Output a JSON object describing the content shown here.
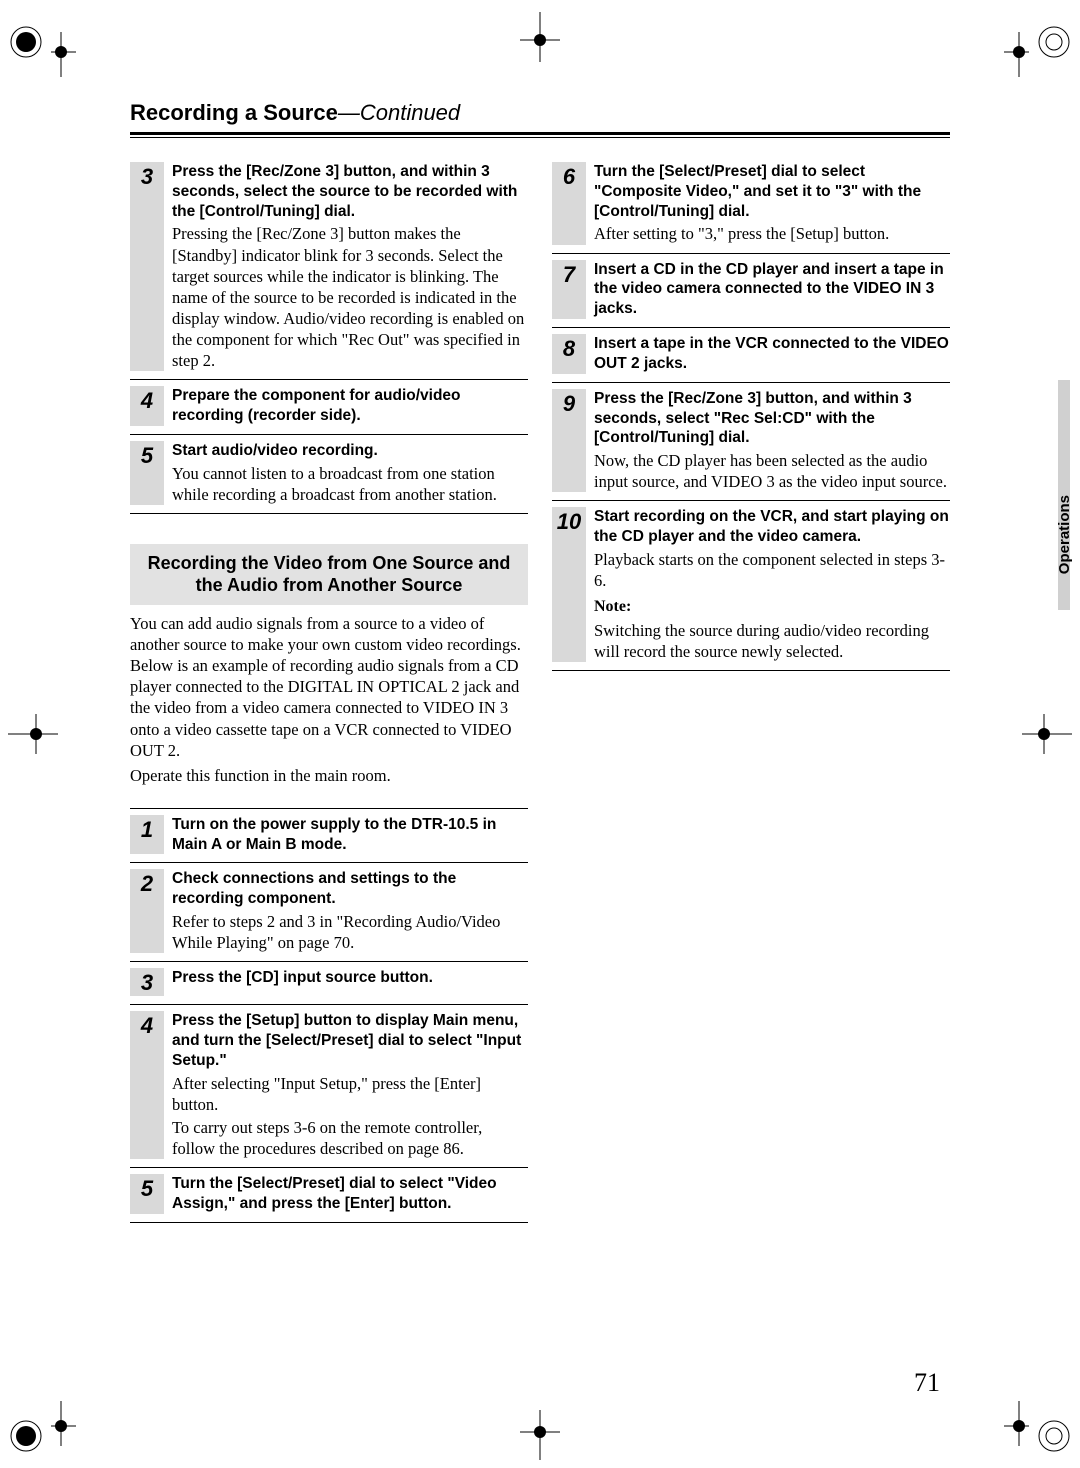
{
  "header": {
    "title": "Recording a Source",
    "continued": "—Continued"
  },
  "sideTab": "Operations",
  "pageNumber": "71",
  "leftTop": {
    "steps": [
      {
        "n": "3",
        "bold": "Press the [Rec/Zone 3] button, and within 3 seconds, select the source to be recorded with the [Control/Tuning] dial.",
        "plain": "Pressing the [Rec/Zone 3] button makes the [Standby] indicator blink for 3 seconds. Select the target sources while the indicator is blinking. The name of the source to be recorded is indicated in the display window. Audio/video recording is enabled on the component for which \"Rec Out\" was specified in step 2."
      },
      {
        "n": "4",
        "bold": "Prepare the component for audio/video recording (recorder side).",
        "plain": ""
      },
      {
        "n": "5",
        "bold": "Start audio/video recording.",
        "plain": "You cannot listen to a broadcast from one station while recording a broadcast from another station."
      }
    ]
  },
  "section2": {
    "heading": "Recording the Video from One Source and the Audio from Another Source",
    "para1": "You can add audio signals from a source to a video of another source to make your own custom video recordings. Below is an example of recording audio signals from a CD player connected to the DIGITAL IN OPTICAL 2 jack and the video from a video camera connected to VIDEO IN 3 onto a video cassette tape on a VCR connected to VIDEO OUT 2.",
    "para2": "Operate this function in the main room.",
    "steps": [
      {
        "n": "1",
        "bold": "Turn on the power supply to the DTR-10.5 in Main A or Main B mode.",
        "plain": ""
      },
      {
        "n": "2",
        "bold": "Check connections and settings to the recording component.",
        "plain": "Refer to steps 2 and 3 in \"Recording Audio/Video While Playing\" on page 70."
      },
      {
        "n": "3",
        "bold": "Press the [CD] input source button.",
        "plain": ""
      },
      {
        "n": "4",
        "bold": "Press the [Setup] button to display Main menu, and turn the [Select/Preset] dial to select \"Input Setup.\"",
        "plain": "After selecting \"Input Setup,\" press the [Enter] button.\nTo carry out steps 3-6 on the remote controller, follow the procedures described on page 86."
      },
      {
        "n": "5",
        "bold": "Turn the [Select/Preset] dial to select \"Video Assign,\" and press the [Enter] button.",
        "plain": ""
      }
    ]
  },
  "rightSteps": [
    {
      "n": "6",
      "bold": "Turn the [Select/Preset] dial to select \"Composite Video,\" and set it to \"3\" with the [Control/Tuning] dial.",
      "plain": "After setting to \"3,\" press the [Setup] button."
    },
    {
      "n": "7",
      "bold": "Insert a CD in the CD player and insert a tape in the video camera connected to the VIDEO IN 3 jacks.",
      "plain": ""
    },
    {
      "n": "8",
      "bold": "Insert a tape in the VCR connected to the VIDEO OUT 2 jacks.",
      "plain": ""
    },
    {
      "n": "9",
      "bold": "Press the [Rec/Zone 3] button, and within 3 seconds, select \"Rec Sel:CD\" with the [Control/Tuning] dial.",
      "plain": "Now, the CD player has been selected as the audio input source, and VIDEO 3 as the video input source."
    },
    {
      "n": "10",
      "bold": "Start recording on the VCR, and start playing on the CD player and the video camera.",
      "plain": "Playback starts on the component selected in steps 3-6.",
      "noteLabel": "Note:",
      "noteText": "Switching the source during audio/video recording will record the source newly selected."
    }
  ]
}
